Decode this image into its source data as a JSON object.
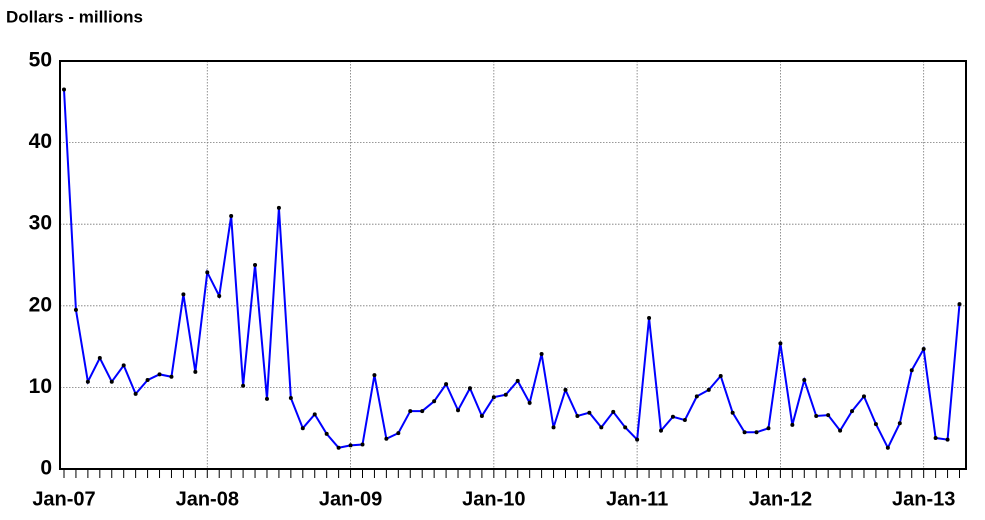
{
  "chart_data": {
    "type": "line",
    "ylabel": "Dollars - millions",
    "categories": [
      "Jan-07",
      null,
      null,
      null,
      null,
      null,
      null,
      null,
      null,
      null,
      null,
      null,
      "Jan-08",
      null,
      null,
      null,
      null,
      null,
      null,
      null,
      null,
      null,
      null,
      null,
      "Jan-09",
      null,
      null,
      null,
      null,
      null,
      null,
      null,
      null,
      null,
      null,
      null,
      "Jan-10",
      null,
      null,
      null,
      null,
      null,
      null,
      null,
      null,
      null,
      null,
      null,
      "Jan-11",
      null,
      null,
      null,
      null,
      null,
      null,
      null,
      null,
      null,
      null,
      null,
      "Jan-12",
      null,
      null,
      null,
      null,
      null,
      null,
      null,
      null,
      null,
      null,
      null,
      "Jan-13",
      null,
      null,
      null
    ],
    "values": [
      46.5,
      19.5,
      10.7,
      13.6,
      10.7,
      12.7,
      9.2,
      10.9,
      11.6,
      11.3,
      21.4,
      11.9,
      24.1,
      21.2,
      31.0,
      10.2,
      25.0,
      8.6,
      32.0,
      8.7,
      5.0,
      6.7,
      4.3,
      2.6,
      2.9,
      3.0,
      11.5,
      3.7,
      4.4,
      7.1,
      7.1,
      8.3,
      10.4,
      7.2,
      9.9,
      6.5,
      8.8,
      9.1,
      10.8,
      8.1,
      14.1,
      5.1,
      9.7,
      6.5,
      6.9,
      5.1,
      7.0,
      5.1,
      3.6,
      18.5,
      4.7,
      6.4,
      6.0,
      8.9,
      9.7,
      11.4,
      6.9,
      4.5,
      4.5,
      5.0,
      15.4,
      5.4,
      10.9,
      6.5,
      6.6,
      4.7,
      7.1,
      8.9,
      5.5,
      2.6,
      5.6,
      12.1,
      14.7,
      3.8,
      3.6,
      20.2
    ],
    "color": "#0000ff",
    "marker_color": "#000000",
    "ylim": [
      0,
      50
    ],
    "yticks": [
      0,
      10,
      20,
      30,
      40,
      50
    ],
    "grid": true
  }
}
